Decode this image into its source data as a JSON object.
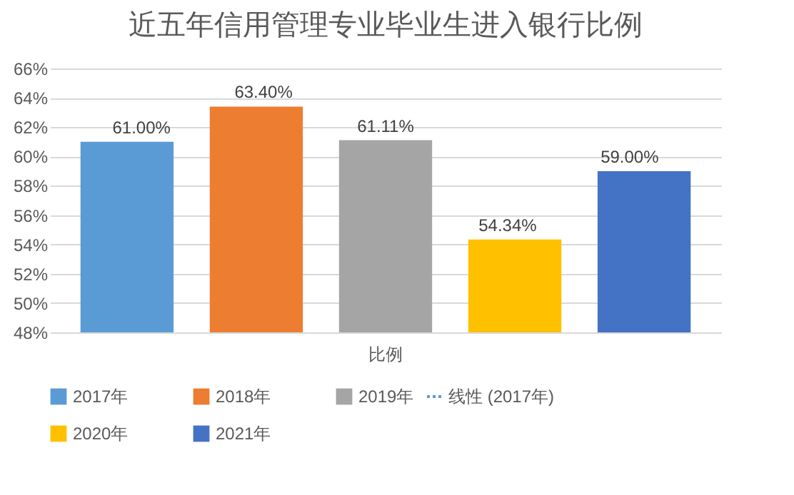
{
  "chart_data": {
    "type": "bar",
    "title": "近五年信用管理专业毕业生进入银行比例",
    "categories": [
      "比例"
    ],
    "series": [
      {
        "name": "2017年",
        "color": "#5b9bd5",
        "values": [
          61.0
        ],
        "value_labels": [
          "61.00%"
        ]
      },
      {
        "name": "2018年",
        "color": "#ed7d31",
        "values": [
          63.4
        ],
        "value_labels": [
          "63.40%"
        ]
      },
      {
        "name": "2019年",
        "color": "#a5a5a5",
        "values": [
          61.11
        ],
        "value_labels": [
          "61.11%"
        ]
      },
      {
        "name": "2020年",
        "color": "#ffc000",
        "values": [
          54.34
        ],
        "value_labels": [
          "54.34%"
        ]
      },
      {
        "name": "2021年",
        "color": "#4472c4",
        "values": [
          59.0
        ],
        "value_labels": [
          "59.00%"
        ]
      },
      {
        "name": "线性 (2017年)",
        "type": "line",
        "line_style": "dotted",
        "color": "#5b9bd5",
        "values": [
          null
        ]
      }
    ],
    "ylim": [
      48,
      66
    ],
    "yticks": [
      {
        "value": 48,
        "label": "48%"
      },
      {
        "value": 50,
        "label": "50%"
      },
      {
        "value": 52,
        "label": "52%"
      },
      {
        "value": 54,
        "label": "54%"
      },
      {
        "value": 56,
        "label": "56%"
      },
      {
        "value": 58,
        "label": "58%"
      },
      {
        "value": 60,
        "label": "60%"
      },
      {
        "value": 62,
        "label": "62%"
      },
      {
        "value": 64,
        "label": "64%"
      },
      {
        "value": 66,
        "label": "66%"
      }
    ],
    "grid": "y",
    "legend": "bottom"
  }
}
